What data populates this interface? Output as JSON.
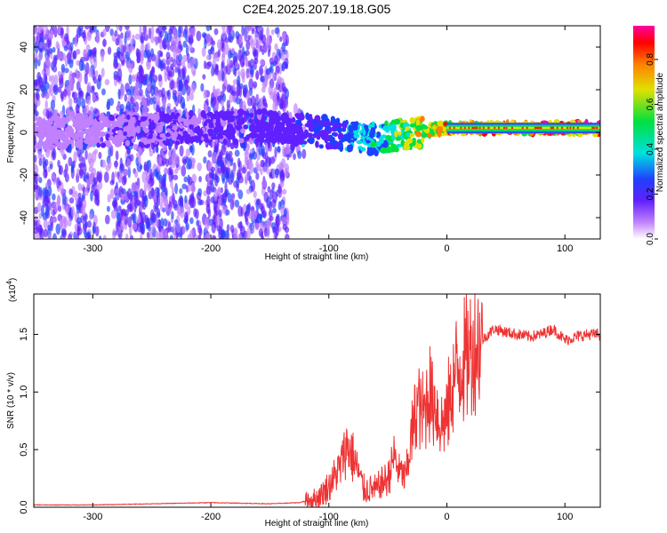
{
  "title": "C2E4.2025.207.19.18.G05",
  "chart_data": [
    {
      "type": "heatmap",
      "xlabel": "Height of straight line (km)",
      "ylabel": "Frequency (Hz)",
      "xlim": [
        -350,
        130
      ],
      "ylim": [
        -50,
        50
      ],
      "xticks": [
        -300,
        -200,
        -100,
        0,
        100
      ],
      "yticks": [
        -40,
        -20,
        0,
        20,
        40
      ],
      "colorbar": {
        "label": "Normalized spectral amplitude",
        "range": [
          0,
          0.95
        ],
        "ticks": [
          "0.0",
          "0.2",
          "0.4",
          "0.6",
          "0.8"
        ],
        "colormap": "rainbow (white-violet-blue-cyan-green-yellow-red-magenta)"
      },
      "description_points": [
        {
          "x": -350,
          "y": 0,
          "z": 0.05
        },
        {
          "x": -150,
          "y": 3,
          "z": 0.12
        },
        {
          "x": -100,
          "y": 0,
          "z": 0.2
        },
        {
          "x": -60,
          "y": -3,
          "z": 0.35
        },
        {
          "x": -30,
          "y": 0,
          "z": 0.6
        },
        {
          "x": 0,
          "y": 2,
          "z": 0.75
        },
        {
          "x": 50,
          "y": 2,
          "z": 0.8
        },
        {
          "x": 130,
          "y": 2,
          "z": 0.85
        }
      ]
    },
    {
      "type": "line",
      "xlabel": "Height of straight line (km)",
      "ylabel": "SNR (10 * v/v)",
      "yscale_label": "(x10",
      "yscale_exp": "4",
      "yscale_close": ")",
      "xlim": [
        -350,
        130
      ],
      "ylim": [
        0,
        1.85
      ],
      "xticks": [
        -300,
        -200,
        -100,
        0,
        100
      ],
      "yticks": [
        "0.0",
        "0.5",
        "1.0",
        "1.5"
      ],
      "series": [
        {
          "color": "#ee3333",
          "x": [
            -350,
            -300,
            -250,
            -200,
            -150,
            -125,
            -110,
            -100,
            -90,
            -85,
            -80,
            -70,
            -60,
            -50,
            -45,
            -40,
            -35,
            -30,
            -25,
            -20,
            -15,
            -10,
            -5,
            0,
            5,
            10,
            15,
            20,
            30,
            40,
            50,
            60,
            70,
            80,
            90,
            100,
            110,
            120,
            130
          ],
          "y": [
            0.02,
            0.02,
            0.03,
            0.04,
            0.03,
            0.04,
            0.08,
            0.18,
            0.35,
            0.55,
            0.45,
            0.15,
            0.15,
            0.25,
            0.45,
            0.3,
            0.25,
            0.6,
            0.9,
            0.8,
            1.0,
            0.9,
            0.7,
            0.8,
            1.1,
            1.2,
            1.3,
            1.35,
            1.45,
            1.55,
            1.52,
            1.5,
            1.48,
            1.5,
            1.55,
            1.45,
            1.48,
            1.5,
            1.5
          ]
        }
      ]
    }
  ]
}
